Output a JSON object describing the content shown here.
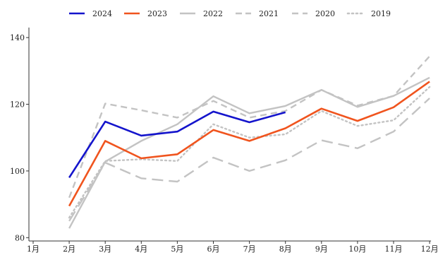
{
  "chart_data": {
    "type": "line",
    "title": "",
    "xlabel": "",
    "ylabel": "",
    "categories": [
      "1月",
      "2月",
      "3月",
      "4月",
      "5月",
      "6月",
      "7月",
      "8月",
      "9月",
      "10月",
      "11月",
      "12月"
    ],
    "ylim": [
      79,
      143
    ],
    "yticks": [
      80,
      100,
      120,
      140
    ],
    "grid": false,
    "legend_position": "top",
    "series": [
      {
        "name": "2024",
        "color": "#1414cc",
        "dash": "solid",
        "values": [
          null,
          98,
          114.8,
          110.6,
          111.8,
          117.8,
          114.6,
          117.6,
          null,
          null,
          null,
          null
        ]
      },
      {
        "name": "2023",
        "color": "#f0541e",
        "dash": "solid",
        "values": [
          null,
          89.5,
          109.0,
          103.8,
          105.0,
          112.3,
          109.0,
          112.8,
          118.7,
          115.0,
          119.1,
          126.8
        ]
      },
      {
        "name": "2022",
        "color": "#c3c3c3",
        "dash": "solid",
        "values": [
          null,
          82.8,
          102.8,
          109.0,
          114.0,
          122.4,
          117.3,
          119.5,
          124.3,
          119.2,
          122.5,
          128.0
        ]
      },
      {
        "name": "2021",
        "color": "#c3c3c3",
        "dash": "longdash",
        "values": [
          null,
          85.0,
          102.5,
          97.8,
          96.8,
          104.0,
          100.0,
          103.2,
          109.2,
          106.8,
          111.8,
          121.8
        ]
      },
      {
        "name": "2020",
        "color": "#c3c3c3",
        "dash": "dash",
        "values": [
          null,
          92.0,
          120.2,
          118.2,
          116.0,
          121.0,
          116.0,
          118.0,
          124.3,
          119.6,
          122.5,
          134.4
        ]
      },
      {
        "name": "2019",
        "color": "#c3c3c3",
        "dash": "dot",
        "values": [
          null,
          86.0,
          103.0,
          103.5,
          103.0,
          114.0,
          110.0,
          111.0,
          118.0,
          113.5,
          115.2,
          125.2
        ]
      }
    ]
  }
}
